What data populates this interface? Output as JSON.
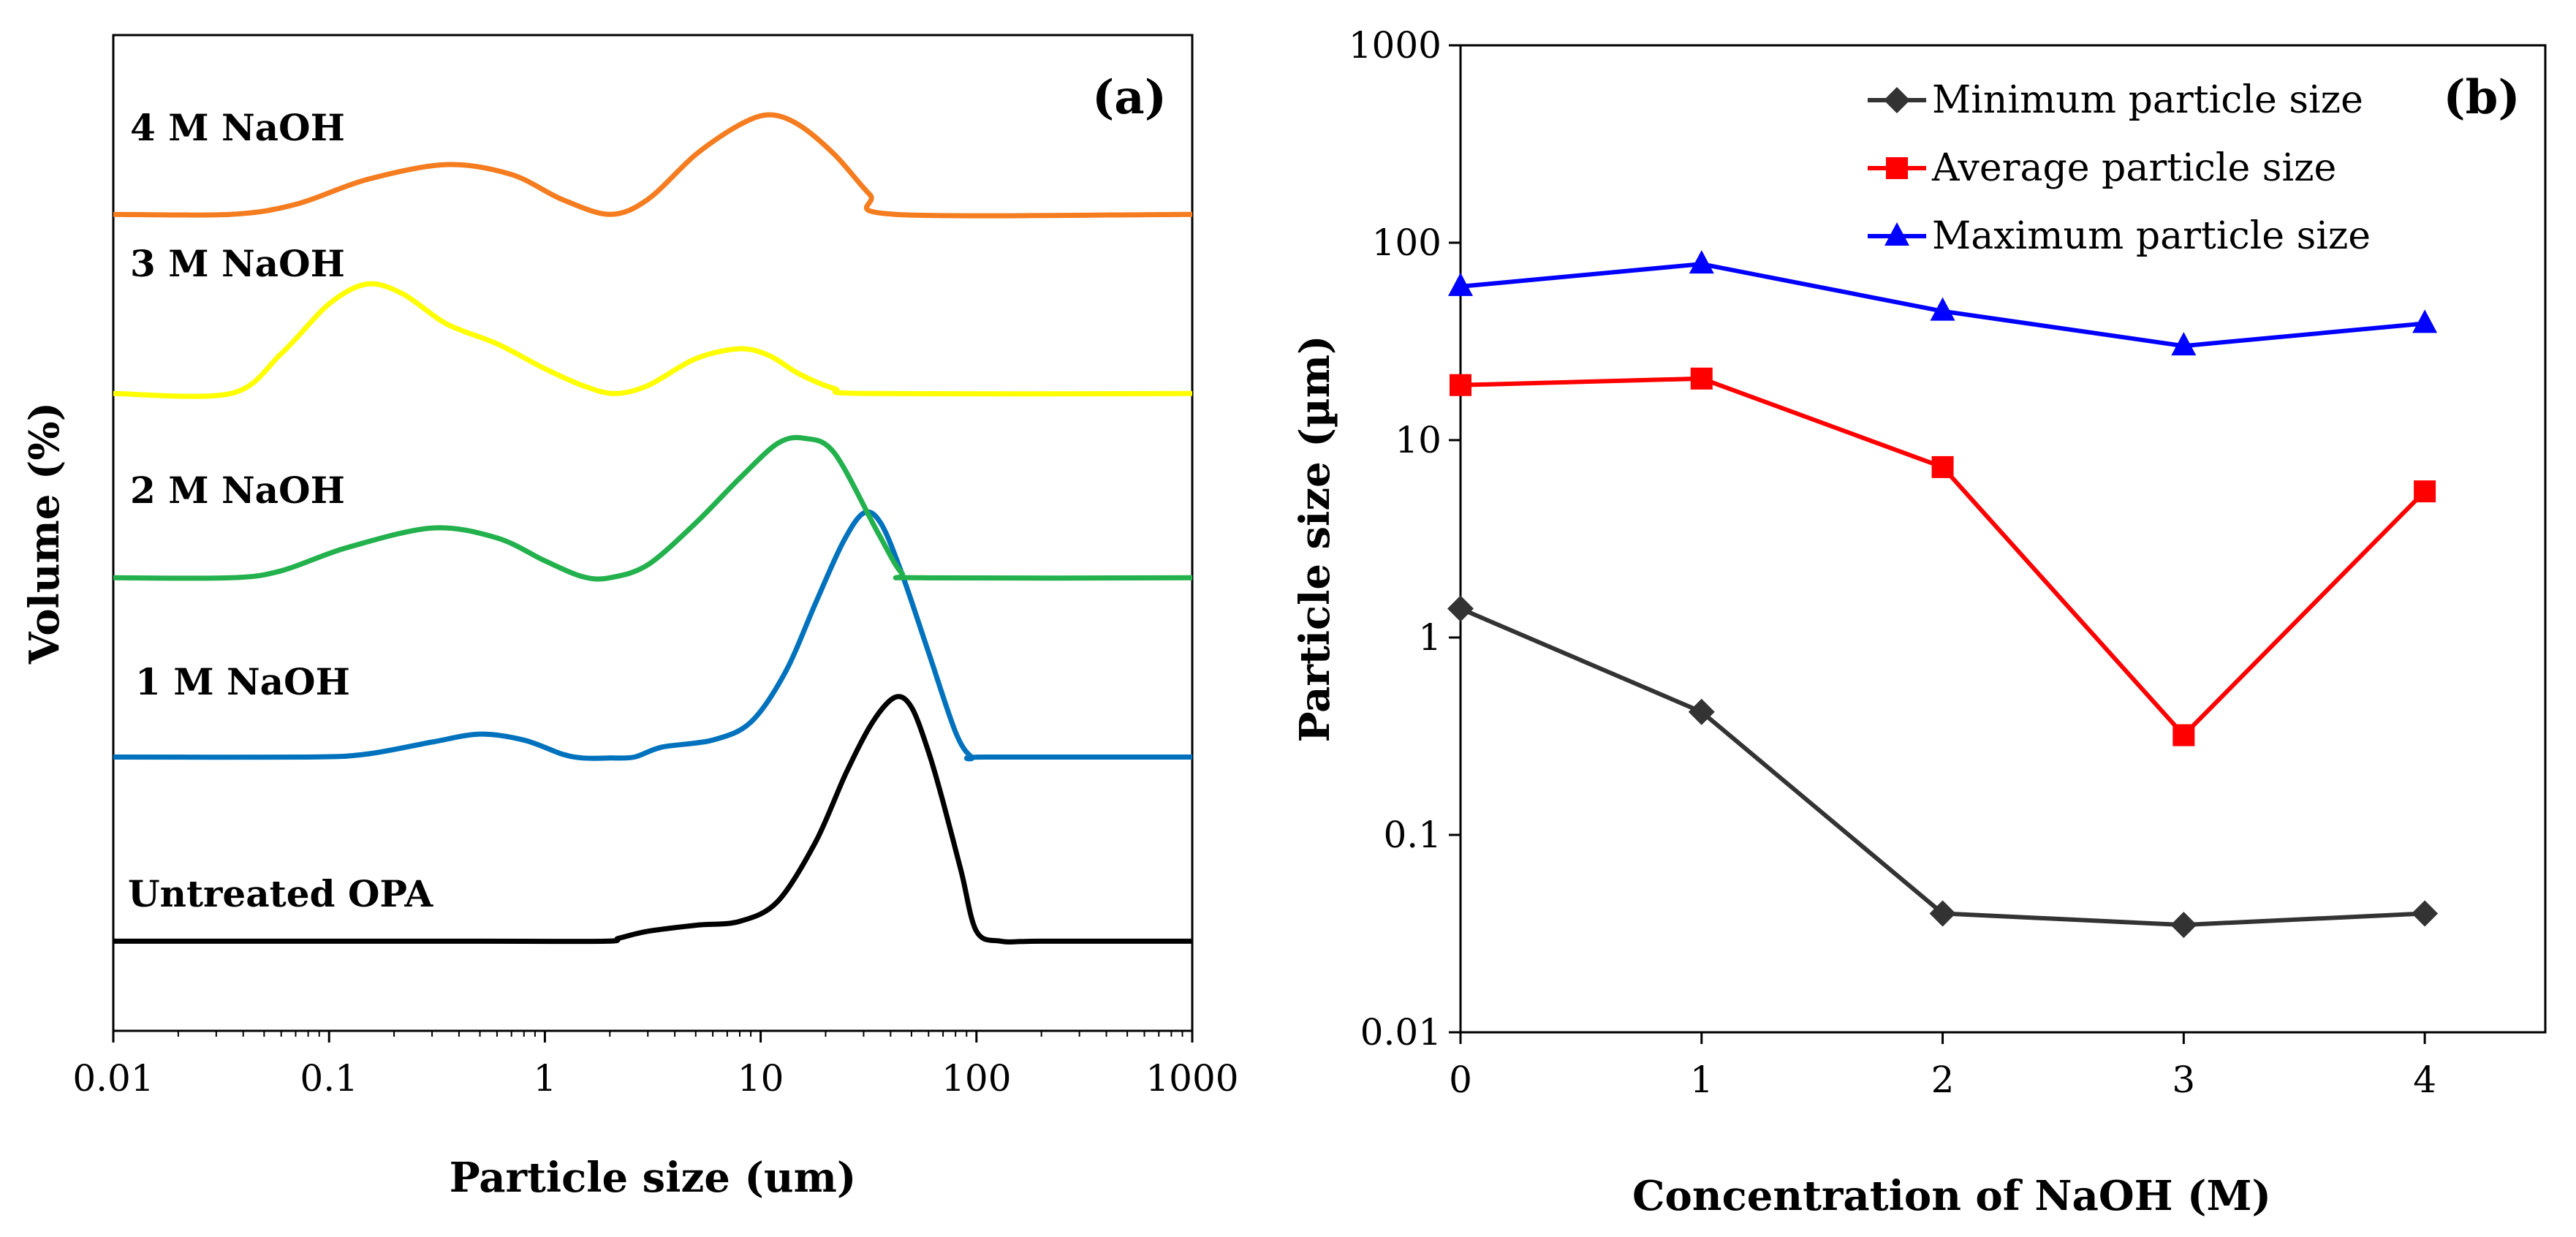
{
  "chart_data": [
    {
      "type": "line",
      "panel_label": "(a)",
      "xlabel": "Particle size (um)",
      "ylabel": "Volume (%)",
      "x_scale": "log",
      "xlim": [
        0.01,
        1000
      ],
      "x_ticks": [
        0.01,
        0.1,
        1,
        10,
        100,
        1000
      ],
      "x_tick_labels": [
        "0.01",
        "0.1",
        "1",
        "10",
        "100",
        "1000"
      ],
      "y_ticks_shown": false,
      "ylim": [
        0,
        10
      ],
      "note": "Stacked distribution curves; y values are in relative volume units with each curve offset.",
      "series": [
        {
          "name": "Untreated OPA",
          "color": "#000000",
          "x": [
            0.01,
            0.5,
            1.9,
            2.2,
            3,
            5,
            8,
            12,
            18,
            25,
            33,
            42,
            50,
            60,
            70,
            85,
            100,
            130,
            200,
            1000
          ],
          "y": [
            0.9,
            0.9,
            0.9,
            0.93,
            1.0,
            1.06,
            1.1,
            1.3,
            1.9,
            2.6,
            3.1,
            3.35,
            3.25,
            2.8,
            2.3,
            1.6,
            1.0,
            0.9,
            0.9,
            0.9
          ]
        },
        {
          "name": "1 M NaOH",
          "color": "#0072BD",
          "x": [
            0.01,
            0.08,
            0.15,
            0.3,
            0.5,
            0.8,
            1.2,
            1.5,
            2,
            2.6,
            3.5,
            6,
            9,
            13,
            18,
            24,
            30,
            36,
            45,
            60,
            80,
            95,
            110,
            1000
          ],
          "y": [
            2.75,
            2.75,
            2.78,
            2.9,
            2.98,
            2.92,
            2.78,
            2.74,
            2.74,
            2.75,
            2.85,
            2.92,
            3.1,
            3.6,
            4.3,
            4.9,
            5.2,
            5.1,
            4.6,
            3.8,
            3.0,
            2.75,
            2.75,
            2.75
          ]
        },
        {
          "name": "2 M NaOH",
          "color": "#22B14C",
          "x": [
            0.01,
            0.035,
            0.06,
            0.12,
            0.3,
            0.6,
            1.0,
            1.5,
            2.0,
            3,
            5,
            8,
            12,
            16,
            22,
            35,
            45,
            55,
            1000
          ],
          "y": [
            4.55,
            4.55,
            4.62,
            4.85,
            5.05,
            4.95,
            4.72,
            4.56,
            4.55,
            4.68,
            5.1,
            5.55,
            5.9,
            5.95,
            5.8,
            5.0,
            4.6,
            4.55,
            4.55
          ]
        },
        {
          "name": "3 M NaOH",
          "color": "#FFFF00",
          "x": [
            0.01,
            0.035,
            0.06,
            0.1,
            0.15,
            0.22,
            0.35,
            0.6,
            1.0,
            1.5,
            2.1,
            3,
            5,
            8,
            11,
            15,
            22,
            32,
            1000
          ],
          "y": [
            6.4,
            6.4,
            6.8,
            7.3,
            7.5,
            7.4,
            7.1,
            6.9,
            6.65,
            6.48,
            6.4,
            6.48,
            6.75,
            6.85,
            6.78,
            6.6,
            6.45,
            6.4,
            6.4
          ]
        },
        {
          "name": "4 M NaOH",
          "color": "#F57C1F",
          "x": [
            0.01,
            0.035,
            0.07,
            0.15,
            0.35,
            0.7,
            1.2,
            2.0,
            3,
            5,
            8,
            11,
            15,
            22,
            32,
            42,
            1000
          ],
          "y": [
            8.2,
            8.2,
            8.3,
            8.55,
            8.7,
            8.6,
            8.35,
            8.2,
            8.35,
            8.8,
            9.1,
            9.2,
            9.1,
            8.8,
            8.4,
            8.2,
            8.2
          ]
        }
      ]
    },
    {
      "type": "line",
      "panel_label": "(b)",
      "xlabel": "Concentration of NaOH (M)",
      "ylabel": "Particle size (µm)",
      "y_scale": "log",
      "ylim": [
        0.01,
        1000
      ],
      "xlim": [
        0,
        4.5
      ],
      "x_ticks": [
        0,
        1,
        2,
        3,
        4
      ],
      "x_tick_labels": [
        "0",
        "1",
        "2",
        "3",
        "4"
      ],
      "y_ticks": [
        0.01,
        0.1,
        1,
        10,
        100,
        1000
      ],
      "y_tick_labels": [
        "0.01",
        "0.1",
        "1",
        "10",
        "100",
        "1000"
      ],
      "legend_position": "top-right",
      "categories": [
        0,
        1,
        2,
        3,
        4
      ],
      "series": [
        {
          "name": "Minimum particle size",
          "color": "#333333",
          "marker": "diamond",
          "values": [
            1.4,
            0.42,
            0.04,
            0.035,
            0.04
          ]
        },
        {
          "name": "Average particle size",
          "color": "#FF0000",
          "marker": "square",
          "values": [
            19,
            20.5,
            7.3,
            0.32,
            5.5
          ]
        },
        {
          "name": "Maximum particle size",
          "color": "#0000FF",
          "marker": "triangle",
          "values": [
            60,
            78,
            45,
            30,
            39
          ]
        }
      ]
    }
  ]
}
